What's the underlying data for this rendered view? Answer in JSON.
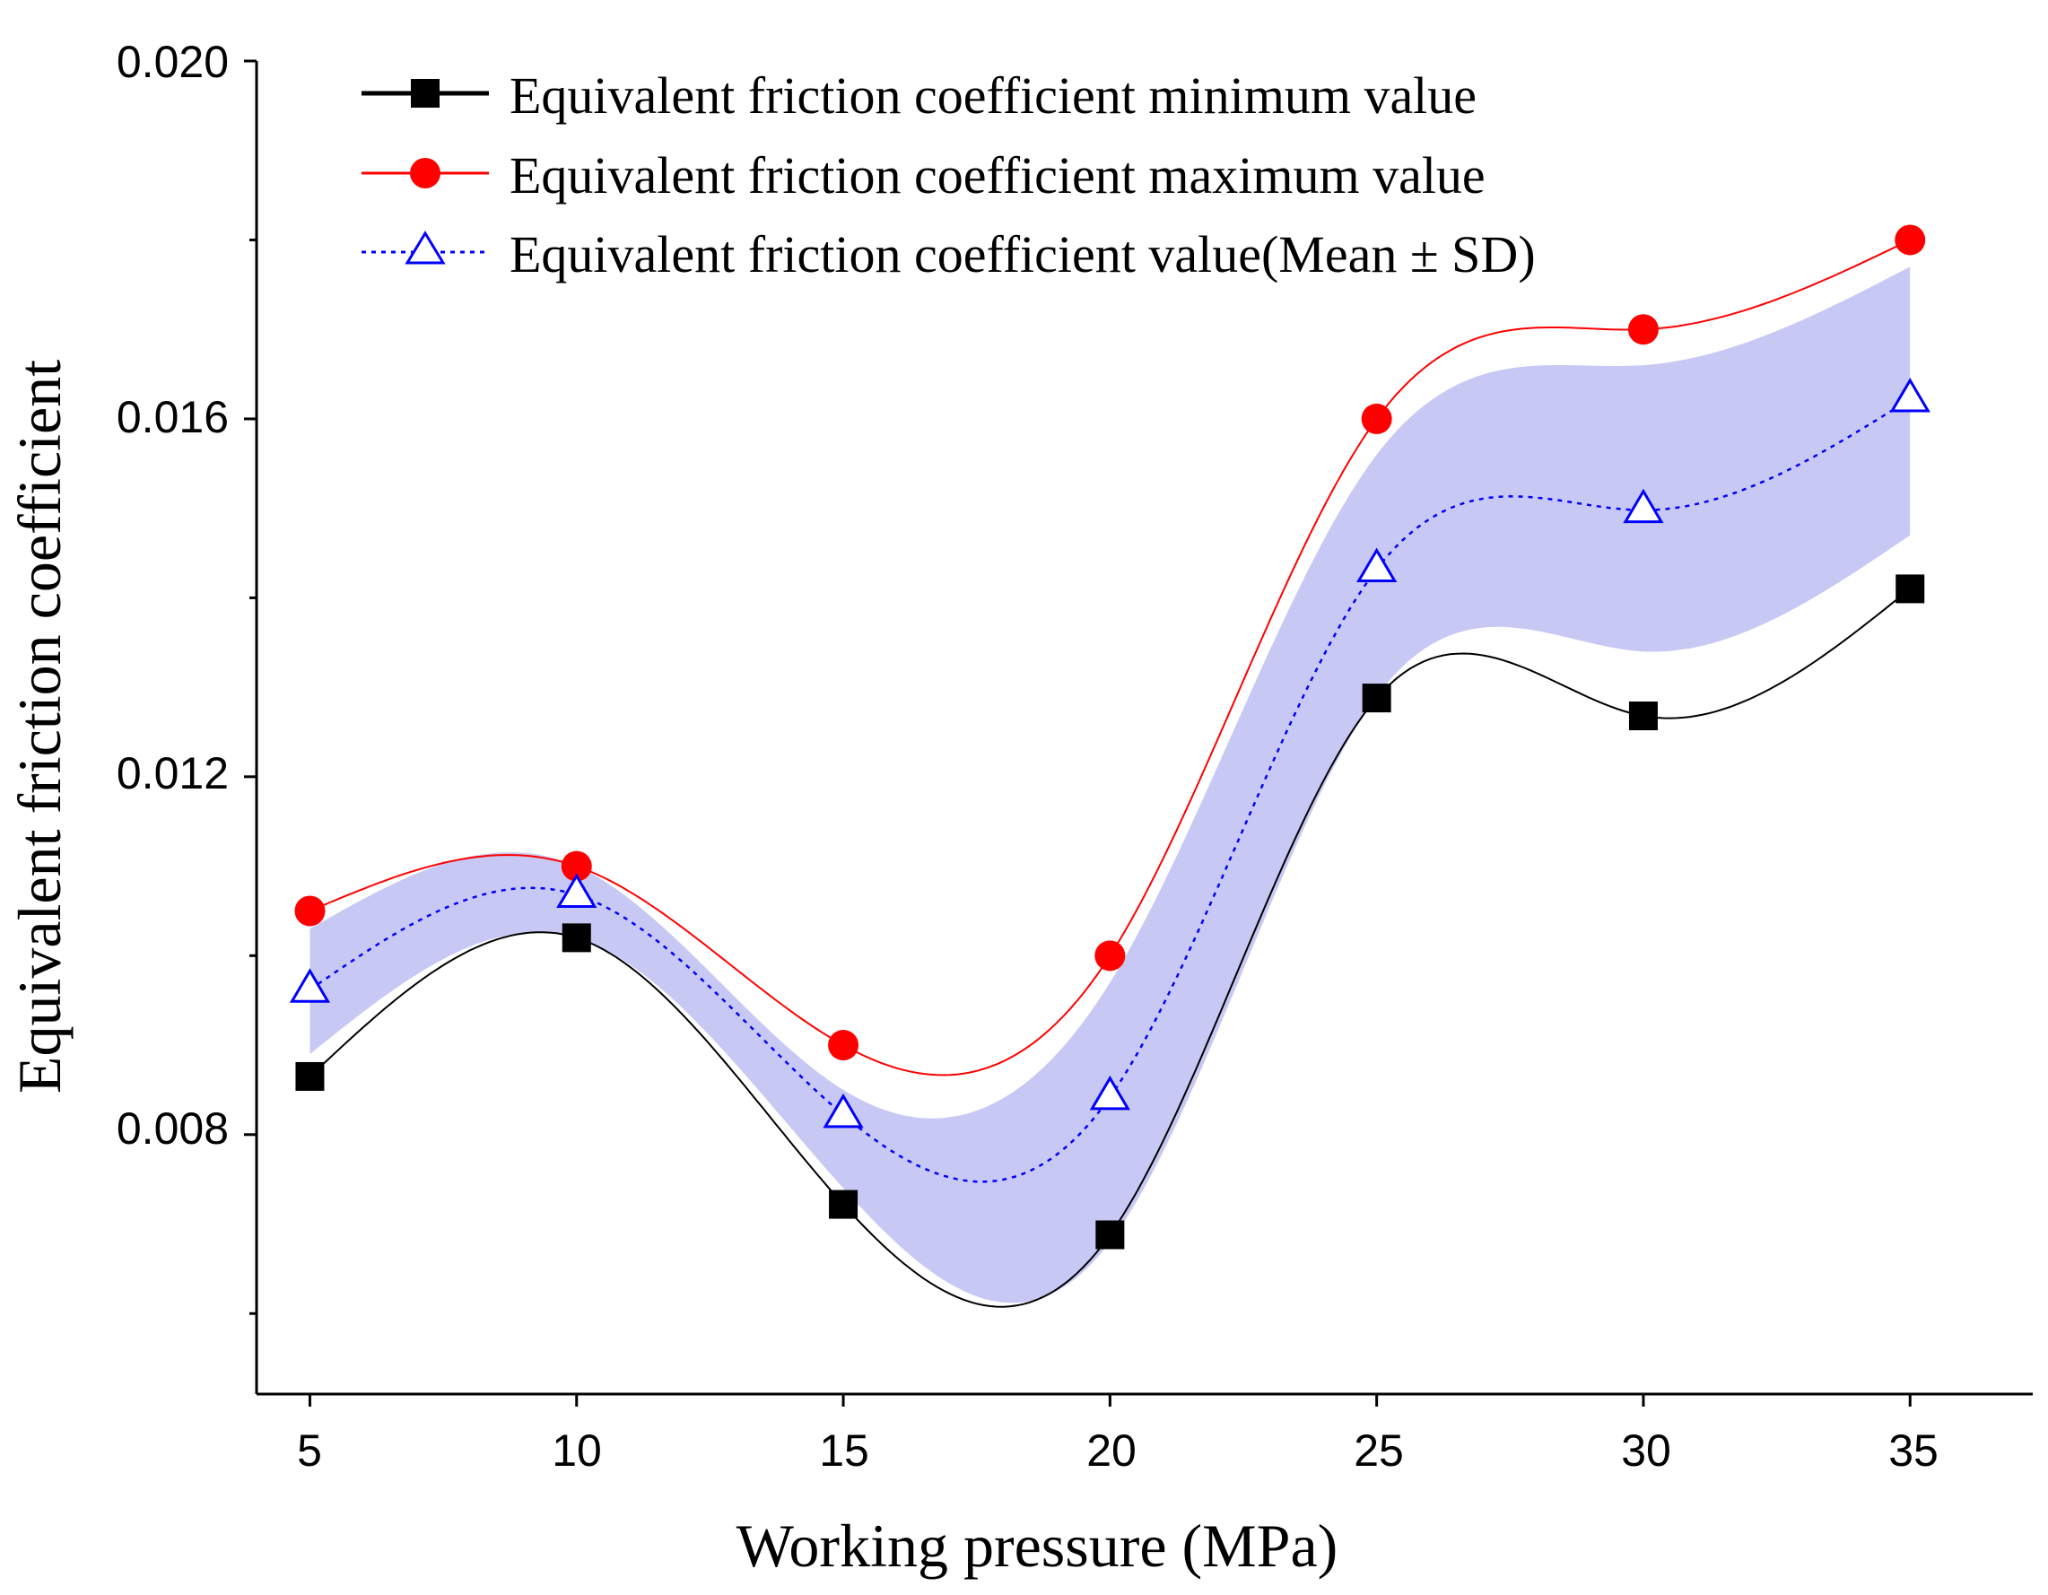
{
  "chart_data": {
    "type": "line",
    "title": "",
    "xlabel": "Working pressure (MPa)",
    "ylabel": "Equivalent friction coefficient",
    "x": [
      5,
      10,
      15,
      20,
      25,
      30,
      35
    ],
    "x_tick_labels": [
      "5",
      "10",
      "15",
      "20",
      "25",
      "30",
      "35"
    ],
    "y_tick_labels": [
      "0.008",
      "0.012",
      "0.016",
      "0.020"
    ],
    "xlim": [
      4,
      37.3
    ],
    "ylim": [
      0.0051,
      0.02
    ],
    "y_ticks": [
      0.008,
      0.012,
      0.016,
      0.02
    ],
    "legend_position": "top-left",
    "series": [
      {
        "name": "Equivalent friction coefficient minimum value",
        "color": "#000000",
        "marker": "square",
        "line_style": "solid",
        "values": [
          0.00865,
          0.0102,
          0.00722,
          0.00688,
          0.01288,
          0.01268,
          0.0141
        ]
      },
      {
        "name": "Equivalent friction coefficient maximum value",
        "color": "#ff0000",
        "marker": "circle",
        "line_style": "solid",
        "values": [
          0.0105,
          0.011,
          0.009,
          0.01,
          0.016,
          0.017,
          0.018
        ]
      },
      {
        "name": "Equivalent friction coefficient value(Mean ± SD)",
        "color": "#0000ff",
        "marker": "open-triangle",
        "line_style": "dotted",
        "values": [
          0.00962,
          0.01068,
          0.00822,
          0.00842,
          0.01432,
          0.01498,
          0.01622
        ],
        "band_lower": [
          0.0089,
          0.0102,
          0.0074,
          0.0068,
          0.0129,
          0.0134,
          0.0147
        ],
        "band_upper": [
          0.0103,
          0.011,
          0.0085,
          0.0097,
          0.0156,
          0.0166,
          0.0177
        ],
        "band_color": "#c8c8f5"
      }
    ]
  }
}
